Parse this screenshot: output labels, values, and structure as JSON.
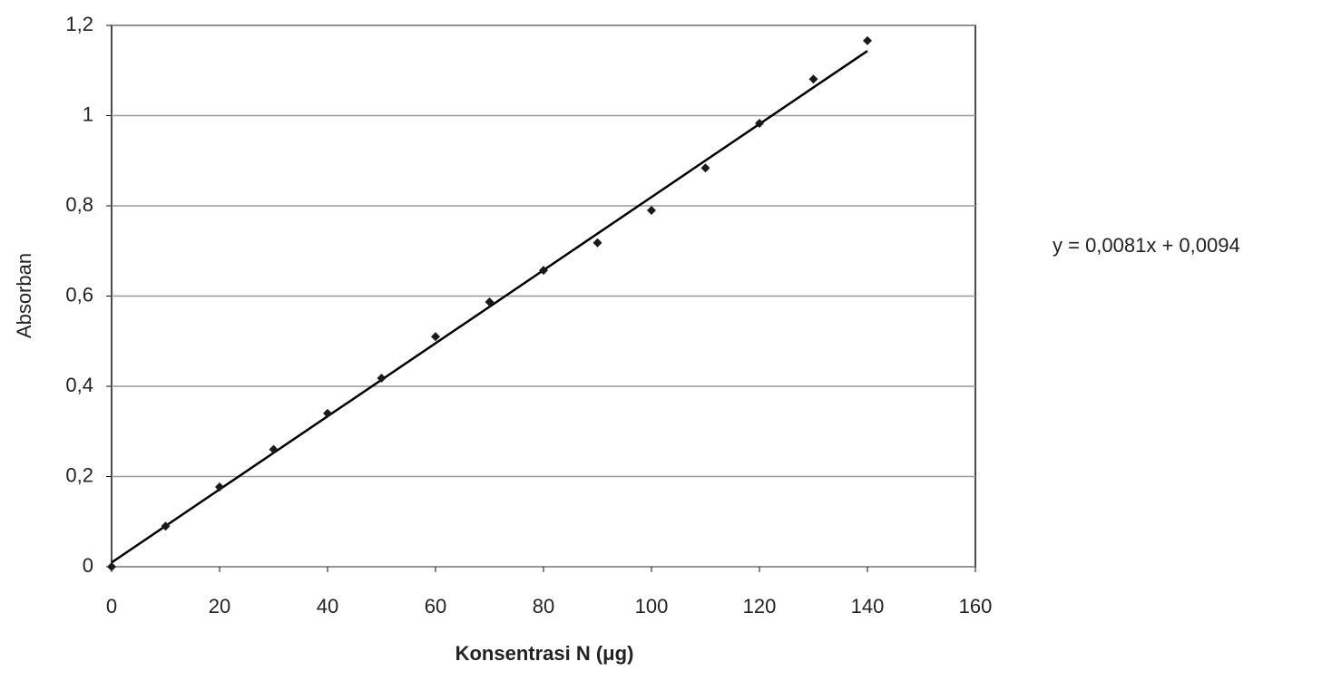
{
  "chart_data": {
    "type": "scatter",
    "x_label": "Konsentrasi N (μg)",
    "y_label": "Absorban",
    "x": [
      0,
      10,
      20,
      30,
      40,
      50,
      60,
      70,
      80,
      90,
      100,
      110,
      120,
      130,
      140
    ],
    "series": [
      {
        "name": "Absorban",
        "color": "#1a1a1a",
        "values": [
          0,
          0.09,
          0.177,
          0.26,
          0.34,
          0.418,
          0.51,
          0.587,
          0.657,
          0.718,
          0.79,
          0.884,
          0.983,
          1.081,
          1.166
        ]
      }
    ],
    "trendline": {
      "slope": 0.0081,
      "intercept": 0.0094,
      "label": "y = 0,0081x + 0,0094",
      "color": "#000000"
    },
    "xlim": [
      0,
      160
    ],
    "xticks": [
      0,
      20,
      40,
      60,
      80,
      100,
      120,
      140,
      160
    ],
    "ylim": [
      0,
      1.2
    ],
    "yticks": [
      0,
      {
        "value": 0.2,
        "label": "0,2"
      },
      {
        "value": 0.4,
        "label": "0,4"
      },
      {
        "value": 0.6,
        "label": "0,6"
      },
      {
        "value": 0.8,
        "label": "0,8"
      },
      1,
      {
        "value": 1.2,
        "label": "1,2"
      }
    ],
    "grid": true
  }
}
